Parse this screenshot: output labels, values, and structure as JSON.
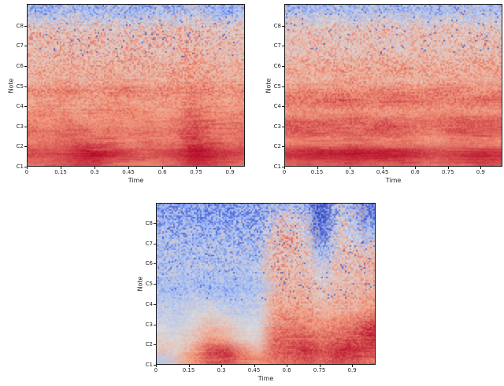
{
  "figure": {
    "background": "#ffffff",
    "axis_color": "#1a1a1a",
    "tick_label_color": "#262626",
    "xlabel": "Time",
    "ylabel": "Note",
    "colormap": "coolwarm",
    "colormap_anchors": [
      "#3a4cc0",
      "#8db0fe",
      "#dddcdc",
      "#f4987a",
      "#b40426"
    ]
  },
  "chart_data": [
    {
      "type": "heatmap",
      "position": "top-left",
      "xlabel": "Time",
      "ylabel": "Note",
      "x_ticks": [
        0,
        0.15,
        0.3,
        0.45,
        0.6,
        0.75,
        0.9
      ],
      "x_tick_labels": [
        "0",
        "0.15",
        "0.3",
        "0.45",
        "0.6",
        "0.75",
        "0.9"
      ],
      "y_tick_labels": [
        "C1",
        "C2",
        "C3",
        "C4",
        "C5",
        "C6",
        "C7",
        "C8"
      ],
      "x_max": 0.966,
      "y_span_octaves": 8.08,
      "value_range": [
        -1,
        1
      ],
      "noise_top": 0.4,
      "noise_bottom": 0.07,
      "speck_zone": 0.32,
      "speck_prob": 0.022,
      "streaks": 520,
      "seed": 7,
      "overlays": [],
      "grid": [
        [
          -0.45,
          -0.5,
          -0.35,
          -0.4,
          -0.5,
          -0.3,
          -0.45,
          -0.5,
          -0.4,
          -0.35,
          -0.2,
          -0.45,
          -0.5,
          -0.4
        ],
        [
          -0.15,
          -0.2,
          -0.1,
          -0.15,
          -0.25,
          -0.1,
          -0.2,
          -0.15,
          -0.1,
          -0.2,
          0,
          -0.15,
          -0.25,
          -0.15
        ],
        [
          0.15,
          0.2,
          0.15,
          0.1,
          0.2,
          0.15,
          0.1,
          0.15,
          0.2,
          0.1,
          0.25,
          0.15,
          0.1,
          0.15
        ],
        [
          0.25,
          0.3,
          0.2,
          0.25,
          0.3,
          0.2,
          0.25,
          0.2,
          0.3,
          0.25,
          0.3,
          0.2,
          0.25,
          0.2
        ],
        [
          0.2,
          0.25,
          0.3,
          0.2,
          0.25,
          0.2,
          0.3,
          0.25,
          0.2,
          0.25,
          0.35,
          0.25,
          0.2,
          0.25
        ],
        [
          0.3,
          0.25,
          0.35,
          0.3,
          0.25,
          0.3,
          0.35,
          0.3,
          0.25,
          0.3,
          0.4,
          0.3,
          0.25,
          0.3
        ],
        [
          0.35,
          0.4,
          0.3,
          0.35,
          0.4,
          0.35,
          0.3,
          0.35,
          0.4,
          0.35,
          0.45,
          0.35,
          0.3,
          0.35
        ],
        [
          0.3,
          0.35,
          0.4,
          0.3,
          0.35,
          0.4,
          0.35,
          0.3,
          0.35,
          0.4,
          0.45,
          0.4,
          0.35,
          0.4
        ],
        [
          0.55,
          0.5,
          0.6,
          0.55,
          0.5,
          0.55,
          0.6,
          0.5,
          0.55,
          0.5,
          0.6,
          0.55,
          0.5,
          0.55
        ],
        [
          0.4,
          0.45,
          0.5,
          0.4,
          0.45,
          0.5,
          0.45,
          0.4,
          0.45,
          0.5,
          0.55,
          0.45,
          0.4,
          0.45
        ],
        [
          0.5,
          0.55,
          0.5,
          0.45,
          0.55,
          0.5,
          0.55,
          0.5,
          0.45,
          0.5,
          0.65,
          0.55,
          0.5,
          0.55
        ],
        [
          0.55,
          0.5,
          0.6,
          0.55,
          0.5,
          0.55,
          0.5,
          0.55,
          0.5,
          0.55,
          0.75,
          0.6,
          0.55,
          0.6
        ],
        [
          0.65,
          0.6,
          0.65,
          0.7,
          0.6,
          0.65,
          0.6,
          0.65,
          0.6,
          0.65,
          0.8,
          0.65,
          0.6,
          0.65
        ],
        [
          0.55,
          0.6,
          0.65,
          0.7,
          0.65,
          0.6,
          0.55,
          0.6,
          0.55,
          0.6,
          0.85,
          0.7,
          0.6,
          0.65
        ],
        [
          0.8,
          0.75,
          0.8,
          0.95,
          1,
          0.9,
          0.8,
          0.75,
          0.8,
          0.85,
          1,
          0.95,
          0.85,
          0.8
        ],
        [
          0.6,
          0.65,
          0.7,
          0.8,
          0.75,
          0.65,
          0.6,
          0.55,
          0.6,
          0.65,
          0.85,
          0.8,
          0.7,
          0.65
        ]
      ]
    },
    {
      "type": "heatmap",
      "position": "top-right",
      "xlabel": "Time",
      "ylabel": "Note",
      "x_ticks": [
        0,
        0.15,
        0.3,
        0.45,
        0.6,
        0.75,
        0.9
      ],
      "x_tick_labels": [
        "0",
        "0.15",
        "0.3",
        "0.45",
        "0.6",
        "0.75",
        "0.9"
      ],
      "y_tick_labels": [
        "C1",
        "C2",
        "C3",
        "C4",
        "C5",
        "C6",
        "C7",
        "C8"
      ],
      "x_max": 1.0,
      "y_span_octaves": 8.08,
      "value_range": [
        -1,
        1
      ],
      "noise_top": 0.38,
      "noise_bottom": 0.07,
      "speck_zone": 0.3,
      "speck_prob": 0.018,
      "streaks": 520,
      "seed": 13,
      "overlays": [],
      "grid": [
        [
          -0.4,
          -0.35,
          -0.45,
          -0.3,
          -0.4,
          -0.35,
          -0.3,
          -0.4,
          -0.35,
          -0.45,
          -0.3,
          -0.35,
          -0.4,
          -0.35
        ],
        [
          -0.1,
          -0.15,
          -0.05,
          -0.1,
          -0.2,
          -0.1,
          -0.05,
          -0.15,
          -0.1,
          -0.2,
          -0.05,
          -0.1,
          -0.15,
          -0.1
        ],
        [
          0.1,
          0.15,
          0.1,
          0.2,
          0.1,
          0.15,
          0.2,
          0.1,
          0.15,
          0.1,
          0.2,
          0.15,
          0.1,
          0.15
        ],
        [
          0.2,
          0.25,
          0.2,
          0.15,
          0.25,
          0.2,
          0.15,
          0.2,
          0.25,
          0.2,
          0.15,
          0.2,
          0.25,
          0.2
        ],
        [
          0.15,
          0.2,
          0.25,
          0.2,
          0.15,
          0.25,
          0.2,
          0.15,
          0.2,
          0.25,
          0.2,
          0.25,
          0.2,
          0.25
        ],
        [
          0.25,
          0.3,
          0.25,
          0.3,
          0.25,
          0.3,
          0.35,
          0.3,
          0.25,
          0.3,
          0.25,
          0.3,
          0.35,
          0.3
        ],
        [
          0.4,
          0.35,
          0.4,
          0.45,
          0.4,
          0.35,
          0.4,
          0.45,
          0.4,
          0.35,
          0.4,
          0.35,
          0.4,
          0.45
        ],
        [
          0.3,
          0.35,
          0.3,
          0.35,
          0.4,
          0.35,
          0.3,
          0.35,
          0.3,
          0.35,
          0.4,
          0.35,
          0.3,
          0.35
        ],
        [
          0.5,
          0.55,
          0.5,
          0.55,
          0.5,
          0.55,
          0.6,
          0.55,
          0.5,
          0.55,
          0.6,
          0.55,
          0.5,
          0.55
        ],
        [
          0.65,
          0.6,
          0.65,
          0.7,
          0.65,
          0.6,
          0.65,
          0.6,
          0.65,
          0.6,
          0.55,
          0.6,
          0.65,
          0.6
        ],
        [
          0.45,
          0.5,
          0.45,
          0.5,
          0.55,
          0.5,
          0.45,
          0.5,
          0.45,
          0.5,
          0.55,
          0.5,
          0.45,
          0.5
        ],
        [
          0.7,
          0.65,
          0.7,
          0.65,
          0.7,
          0.65,
          0.7,
          0.65,
          0.6,
          0.65,
          0.7,
          0.75,
          0.7,
          0.65
        ],
        [
          0.7,
          0.75,
          0.65,
          0.7,
          0.65,
          0.7,
          0.75,
          0.7,
          0.6,
          0.55,
          0.65,
          0.7,
          0.65,
          0.7
        ],
        [
          0.5,
          0.55,
          0.5,
          0.55,
          0.6,
          0.55,
          0.5,
          0.55,
          0.5,
          0.45,
          0.55,
          0.6,
          0.55,
          0.5
        ],
        [
          0.9,
          0.95,
          1,
          0.95,
          1,
          0.95,
          1,
          0.95,
          0.9,
          0.8,
          0.85,
          0.9,
          0.95,
          0.9
        ],
        [
          0.65,
          0.7,
          0.65,
          0.7,
          0.75,
          0.7,
          0.65,
          0.7,
          0.65,
          0.6,
          0.65,
          0.7,
          0.75,
          0.7
        ]
      ]
    },
    {
      "type": "heatmap",
      "position": "bottom-center",
      "xlabel": "Time",
      "ylabel": "Note",
      "x_ticks": [
        0,
        0.15,
        0.3,
        0.45,
        0.6,
        0.75,
        0.9
      ],
      "x_tick_labels": [
        "0",
        "0.15",
        "0.3",
        "0.45",
        "0.6",
        "0.75",
        "0.9"
      ],
      "y_tick_labels": [
        "C1",
        "C2",
        "C3",
        "C4",
        "C5",
        "C6",
        "C7",
        "C8"
      ],
      "x_max": 1.008,
      "y_span_octaves": 8.0,
      "value_range": [
        -1,
        1
      ],
      "noise_top": 0.45,
      "noise_bottom": 0.12,
      "speck_zone": 0.6,
      "speck_prob": 0.03,
      "streaks": 420,
      "seed": 42,
      "overlays": [
        {
          "x0": 0.715,
          "x1": 0.755,
          "y1": 0.3,
          "v": -1,
          "alpha": 0.95
        },
        {
          "x0": 0.935,
          "x1": 0.955,
          "y1": 0.22,
          "v": -0.9,
          "alpha": 0.8
        }
      ],
      "grid": [
        [
          -0.5,
          -0.55,
          -0.5,
          -0.6,
          -0.55,
          -0.5,
          -0.55,
          -0.35,
          -0.3,
          -0.4,
          -1,
          -0.2,
          -0.3,
          -0.9
        ],
        [
          -0.45,
          -0.5,
          -0.55,
          -0.5,
          -0.45,
          -0.55,
          -0.5,
          -0.2,
          0.1,
          -0.25,
          -1,
          -0.1,
          -0.2,
          -0.7
        ],
        [
          -0.4,
          -0.45,
          -0.4,
          -0.5,
          -0.45,
          -0.4,
          -0.45,
          0,
          0.2,
          -0.1,
          -0.9,
          0.05,
          -0.15,
          -0.5
        ],
        [
          -0.35,
          -0.3,
          -0.4,
          -0.35,
          -0.3,
          -0.4,
          -0.35,
          0.15,
          0.25,
          0,
          -0.7,
          0.1,
          0,
          -0.3
        ],
        [
          -0.3,
          -0.35,
          -0.25,
          -0.3,
          -0.35,
          -0.3,
          -0.25,
          0.2,
          0.3,
          0.1,
          -0.5,
          0.15,
          0.1,
          0.2
        ],
        [
          -0.3,
          -0.25,
          -0.3,
          -0.35,
          -0.25,
          -0.3,
          -0.35,
          0.25,
          0.2,
          0.15,
          -0.3,
          0.2,
          0.15,
          0.3
        ],
        [
          -0.25,
          -0.3,
          -0.2,
          -0.25,
          -0.3,
          -0.25,
          -0.2,
          0.3,
          0.25,
          0.2,
          -0.1,
          0.25,
          0.2,
          0.35
        ],
        [
          -0.3,
          -0.25,
          -0.35,
          -0.3,
          -0.25,
          -0.3,
          -0.25,
          0.2,
          0.3,
          0.25,
          0,
          0.2,
          0.25,
          0.3
        ],
        [
          -0.35,
          -0.4,
          -0.3,
          -0.35,
          -0.4,
          -0.35,
          -0.3,
          0.3,
          0.35,
          0.3,
          0.1,
          0.3,
          0.25,
          0.35
        ],
        [
          -0.2,
          -0.25,
          -0.15,
          -0.2,
          -0.25,
          -0.2,
          -0.15,
          0.35,
          0.3,
          0.35,
          0.2,
          0.3,
          0.35,
          0.4
        ],
        [
          -0.15,
          -0.2,
          -0.1,
          0,
          -0.15,
          -0.2,
          -0.1,
          0.4,
          0.45,
          0.4,
          0.3,
          0.35,
          0.4,
          0.5
        ],
        [
          -0.1,
          -0.15,
          0,
          0.2,
          0.1,
          -0.1,
          -0.05,
          0.5,
          0.55,
          0.5,
          0.45,
          0.5,
          0.55,
          0.7
        ],
        [
          0,
          -0.05,
          0.1,
          0.35,
          0.25,
          0.05,
          0,
          0.6,
          0.65,
          0.6,
          0.55,
          0.6,
          0.7,
          0.9
        ],
        [
          0.1,
          0.05,
          0.2,
          0.5,
          0.4,
          0.15,
          0.1,
          0.65,
          0.7,
          0.75,
          0.6,
          0.7,
          0.75,
          0.85
        ],
        [
          0.2,
          0.1,
          0.5,
          0.8,
          0.85,
          0.6,
          0.35,
          0.7,
          0.75,
          0.85,
          0.7,
          0.9,
          0.85,
          0.7
        ],
        [
          -0.3,
          0.3,
          0.5,
          0.7,
          0.75,
          0.6,
          0.5,
          0.6,
          0.65,
          0.7,
          0.65,
          0.75,
          0.7,
          0.6
        ]
      ]
    }
  ]
}
